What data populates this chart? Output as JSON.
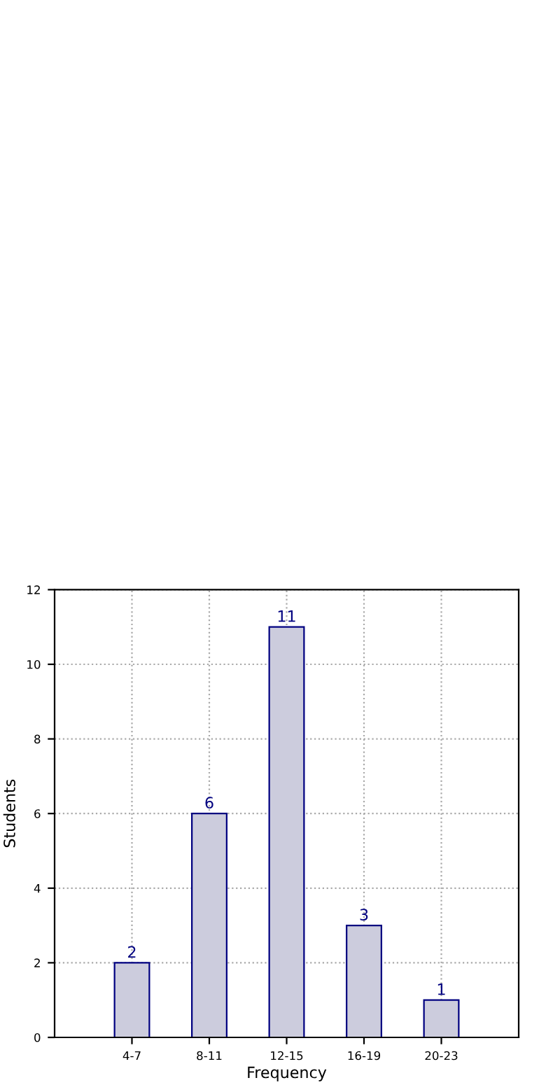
{
  "chart_data": {
    "type": "bar",
    "xlabel": "Frequency",
    "ylabel": "Students",
    "categories": [
      "4-7",
      "8-11",
      "12-15",
      "16-19",
      "20-23"
    ],
    "values": [
      2,
      6,
      11,
      3,
      1
    ],
    "color": "#ccccdd",
    "ylim": [
      0,
      12
    ],
    "yticks": [
      0,
      2,
      4,
      6,
      8,
      10,
      12
    ],
    "grid": true,
    "data_labels": true
  }
}
